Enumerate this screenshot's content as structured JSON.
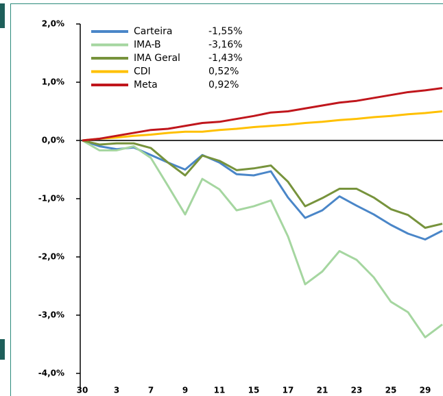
{
  "chart_data": {
    "type": "line",
    "categories": [
      "30",
      null,
      "3",
      null,
      "7",
      null,
      "9",
      null,
      "11",
      null,
      "15",
      null,
      "17",
      null,
      "21",
      null,
      "23",
      null,
      "25",
      null,
      "29",
      null
    ],
    "series": [
      {
        "name": "Carteira",
        "legend_value": "-1,55%",
        "color": "#4a86c8",
        "values": [
          0,
          -0.1,
          -0.15,
          -0.12,
          -0.25,
          -0.38,
          -0.5,
          -0.25,
          -0.38,
          -0.58,
          -0.6,
          -0.53,
          -0.98,
          -1.33,
          -1.2,
          -0.96,
          -1.12,
          -1.27,
          -1.45,
          -1.6,
          -1.7,
          -1.55
        ]
      },
      {
        "name": "IMA-B",
        "legend_value": "-3,16%",
        "color": "#a5d6a0",
        "values": [
          0,
          -0.17,
          -0.17,
          -0.1,
          -0.3,
          -0.78,
          -1.27,
          -0.66,
          -0.84,
          -1.2,
          -1.13,
          -1.03,
          -1.65,
          -2.47,
          -2.25,
          -1.9,
          -2.05,
          -2.35,
          -2.77,
          -2.95,
          -3.38,
          -3.16
        ]
      },
      {
        "name": "IMA Geral",
        "legend_value": "-1,43%",
        "color": "#77933c",
        "values": [
          0,
          -0.07,
          -0.05,
          -0.05,
          -0.13,
          -0.38,
          -0.6,
          -0.26,
          -0.35,
          -0.51,
          -0.48,
          -0.43,
          -0.71,
          -1.13,
          -0.99,
          -0.83,
          -0.83,
          -0.98,
          -1.18,
          -1.28,
          -1.5,
          -1.43
        ]
      },
      {
        "name": "CDI",
        "legend_value": "0,52%",
        "color": "#ffc000",
        "values": [
          0,
          0.03,
          0.05,
          0.08,
          0.1,
          0.13,
          0.15,
          0.15,
          0.18,
          0.2,
          0.23,
          0.25,
          0.27,
          0.3,
          0.32,
          0.35,
          0.37,
          0.4,
          0.42,
          0.45,
          0.47,
          0.5
        ]
      },
      {
        "name": "Meta",
        "legend_value": "0,92%",
        "color": "#c0161c",
        "values": [
          0,
          0.03,
          0.08,
          0.13,
          0.18,
          0.2,
          0.25,
          0.3,
          0.32,
          0.37,
          0.42,
          0.48,
          0.5,
          0.55,
          0.6,
          0.65,
          0.68,
          0.73,
          0.78,
          0.83,
          0.86,
          0.9
        ]
      }
    ],
    "ylim": [
      -4,
      2
    ],
    "yticks": [
      {
        "value": -4,
        "label": "-4,0%"
      },
      {
        "value": -3,
        "label": "-3,0%"
      },
      {
        "value": -2,
        "label": "-2,0%"
      },
      {
        "value": -1,
        "label": "-1,0%"
      },
      {
        "value": 0,
        "label": "0,0%"
      },
      {
        "value": 1,
        "label": "1,0%"
      },
      {
        "value": 2,
        "label": "2,0%"
      }
    ]
  }
}
